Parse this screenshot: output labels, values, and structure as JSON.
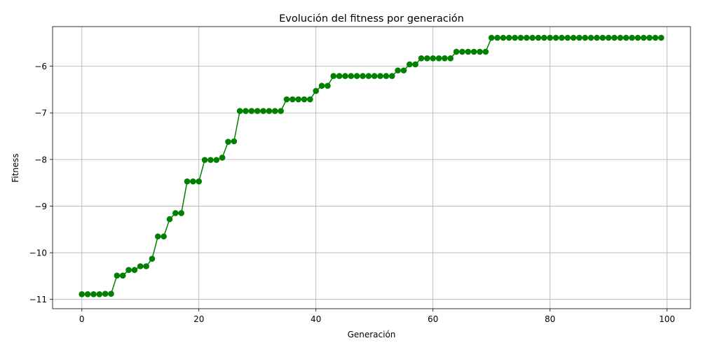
{
  "chart_data": {
    "type": "line",
    "title": "Evolución del fitness por generación",
    "xlabel": "Generación",
    "ylabel": "Fitness",
    "xlim": [
      -5,
      104
    ],
    "ylim": [
      -11.2,
      -5.15
    ],
    "x_ticks": [
      0,
      20,
      40,
      60,
      80,
      100
    ],
    "y_ticks": [
      -11,
      -10,
      -9,
      -8,
      -7,
      -6
    ],
    "grid": true,
    "legend": "none",
    "color": "#008000",
    "marker": "circle",
    "series": [
      {
        "x": [
          0,
          1,
          2,
          3,
          4,
          5,
          6,
          7,
          8,
          9,
          10,
          11,
          12,
          13,
          14,
          15,
          16,
          17,
          18,
          19,
          20,
          21,
          22,
          23,
          24,
          25,
          26,
          27,
          28,
          29,
          30,
          31,
          32,
          33,
          34,
          35,
          36,
          37,
          38,
          39,
          40,
          41,
          42,
          43,
          44,
          45,
          46,
          47,
          48,
          49,
          50,
          51,
          52,
          53,
          54,
          55,
          56,
          57,
          58,
          59,
          60,
          61,
          62,
          63,
          64,
          65,
          66,
          67,
          68,
          69,
          70,
          71,
          72,
          73,
          74,
          75,
          76,
          77,
          78,
          79,
          80,
          81,
          82,
          83,
          84,
          85,
          86,
          87,
          88,
          89,
          90,
          91,
          92,
          93,
          94,
          95,
          96,
          97,
          98,
          99
        ],
        "y": [
          -10.89,
          -10.89,
          -10.89,
          -10.89,
          -10.88,
          -10.88,
          -10.49,
          -10.49,
          -10.37,
          -10.37,
          -10.29,
          -10.29,
          -10.13,
          -9.65,
          -9.65,
          -9.28,
          -9.15,
          -9.15,
          -8.47,
          -8.47,
          -8.47,
          -8.01,
          -8.01,
          -8.01,
          -7.96,
          -7.62,
          -7.61,
          -6.96,
          -6.96,
          -6.96,
          -6.96,
          -6.96,
          -6.96,
          -6.96,
          -6.96,
          -6.71,
          -6.71,
          -6.71,
          -6.71,
          -6.71,
          -6.53,
          -6.42,
          -6.42,
          -6.21,
          -6.21,
          -6.21,
          -6.21,
          -6.21,
          -6.21,
          -6.21,
          -6.21,
          -6.21,
          -6.21,
          -6.21,
          -6.09,
          -6.09,
          -5.96,
          -5.96,
          -5.83,
          -5.83,
          -5.83,
          -5.83,
          -5.83,
          -5.83,
          -5.69,
          -5.69,
          -5.69,
          -5.69,
          -5.69,
          -5.69,
          -5.39,
          -5.39,
          -5.39,
          -5.39,
          -5.39,
          -5.39,
          -5.39,
          -5.39,
          -5.39,
          -5.39,
          -5.39,
          -5.39,
          -5.39,
          -5.39,
          -5.39,
          -5.39,
          -5.39,
          -5.39,
          -5.39,
          -5.39,
          -5.39,
          -5.39,
          -5.39,
          -5.39,
          -5.39,
          -5.39,
          -5.39,
          -5.39,
          -5.39,
          -5.39
        ]
      }
    ]
  }
}
